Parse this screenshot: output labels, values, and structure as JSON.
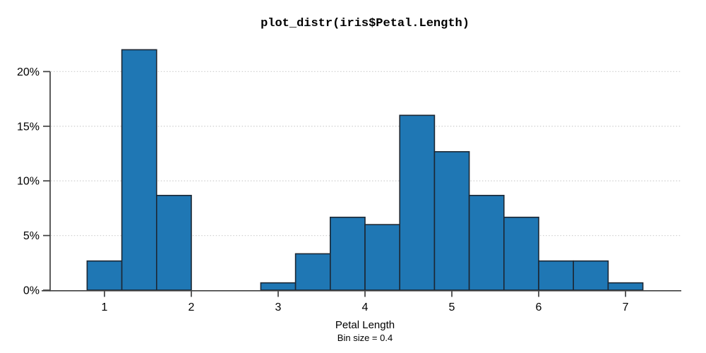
{
  "header": {
    "title": "plot_distr(iris$Petal.Length)"
  },
  "axes": {
    "xlabel": "Petal Length",
    "bin_size_label": "Bin size = 0.4"
  },
  "chart_data": {
    "type": "bar",
    "subtype": "histogram",
    "title": "plot_distr(iris$Petal.Length)",
    "xlabel": "Petal Length",
    "sublabel": "Bin size = 0.4",
    "ylabel": "",
    "bin_width": 0.4,
    "bin_start": [
      0.8,
      1.2,
      1.6,
      2.0,
      2.4,
      2.8,
      3.2,
      3.6,
      4.0,
      4.4,
      4.8,
      5.2,
      5.6,
      6.0,
      6.4,
      6.8
    ],
    "values_percent": [
      2.67,
      22.0,
      8.67,
      0,
      0,
      0.67,
      3.33,
      6.67,
      6.0,
      16.0,
      12.67,
      8.67,
      6.67,
      2.67,
      2.67,
      0.67
    ],
    "x_ticks": [
      1,
      2,
      3,
      4,
      5,
      6,
      7
    ],
    "y_ticks": [
      0,
      5,
      10,
      15,
      20
    ],
    "y_tick_labels": [
      "0%",
      "5%",
      "10%",
      "15%",
      "20%"
    ],
    "xlim": [
      0.28,
      7.64
    ],
    "ylim": [
      0,
      22
    ],
    "grid": "horizontal dotted at y ticks > 0",
    "legend": "none",
    "colors": {
      "bar_fill": "#1f77b4",
      "bar_edge": "#1c2733",
      "axis": "#3f3f3f",
      "grid": "#d2d2d2",
      "text": "#000000"
    }
  }
}
